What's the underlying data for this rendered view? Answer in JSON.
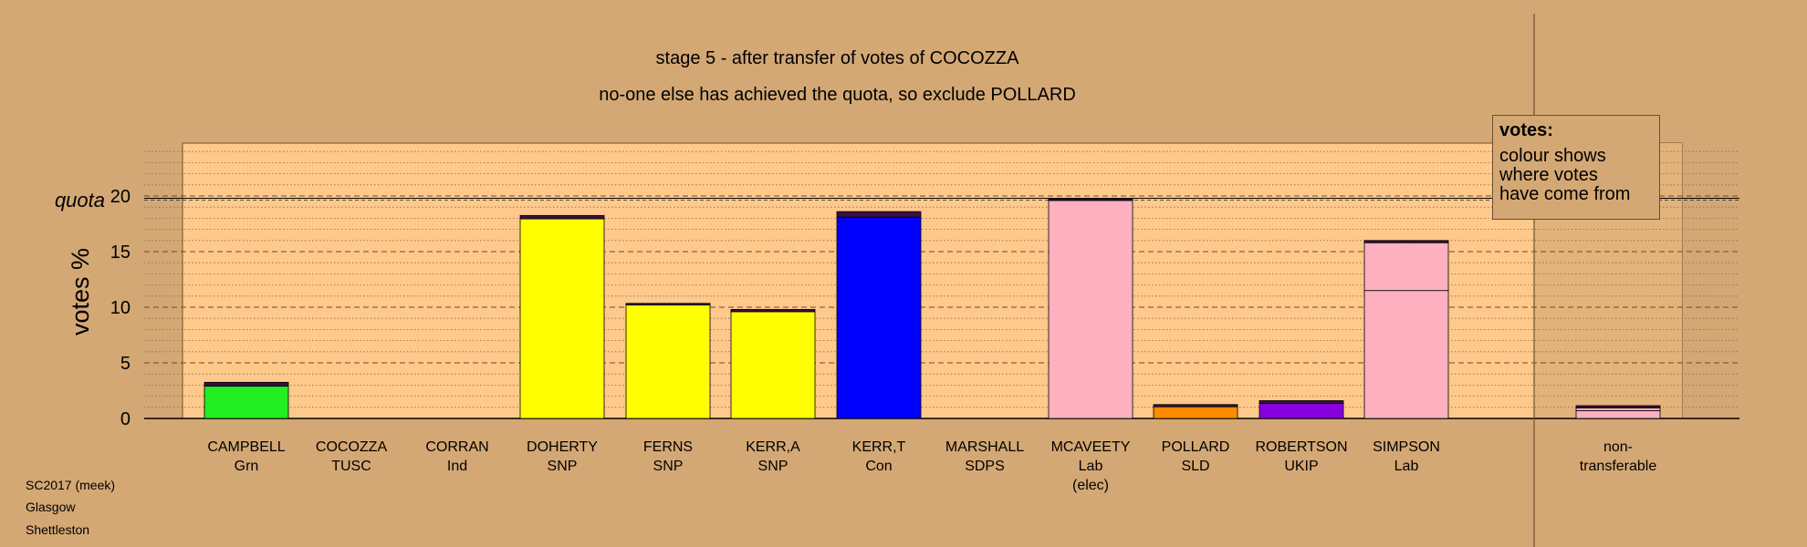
{
  "chart_data": {
    "type": "bar",
    "title": "stage 5 - after transfer of votes of COCOZZA",
    "subtitle": "no-one else has achieved the quota, so exclude POLLARD",
    "ylabel": "votes %",
    "quota_label": "quota",
    "quota_value": 19.8,
    "ylim": [
      0,
      25
    ],
    "yticks": [
      0,
      5,
      10,
      15,
      20
    ],
    "grid": true,
    "candidates": [
      {
        "name": "CAMPBELL",
        "party": "Grn",
        "extra": "",
        "color": "#22ee22",
        "segments": [
          2.9,
          0.35
        ]
      },
      {
        "name": "COCOZZA",
        "party": "TUSC",
        "extra": "",
        "color": "#dd0000",
        "segments": []
      },
      {
        "name": "CORRAN",
        "party": "Ind",
        "extra": "",
        "color": "#999999",
        "segments": []
      },
      {
        "name": "DOHERTY",
        "party": "SNP",
        "extra": "",
        "color": "#ffff00",
        "segments": [
          17.95,
          0.3
        ]
      },
      {
        "name": "FERNS",
        "party": "SNP",
        "extra": "",
        "color": "#ffff00",
        "segments": [
          10.2,
          0.15
        ]
      },
      {
        "name": "KERR,A",
        "party": "SNP",
        "extra": "",
        "color": "#ffff00",
        "segments": [
          9.6,
          0.2
        ]
      },
      {
        "name": "KERR,T",
        "party": "Con",
        "extra": "",
        "color": "#0000ff",
        "segments": [
          18.1,
          0.5
        ]
      },
      {
        "name": "MARSHALL",
        "party": "SDPS",
        "extra": "",
        "color": "#aa5500",
        "segments": []
      },
      {
        "name": "MCAVEETY",
        "party": "Lab",
        "extra": "(elec)",
        "color": "#ffb0c0",
        "segments": [
          19.6,
          0.15
        ]
      },
      {
        "name": "POLLARD",
        "party": "SLD",
        "extra": "",
        "color": "#ff8c00",
        "segments": [
          1.05,
          0.2
        ]
      },
      {
        "name": "ROBERTSON",
        "party": "UKIP",
        "extra": "",
        "color": "#8800dd",
        "segments": [
          1.35,
          0.25
        ]
      },
      {
        "name": "SIMPSON",
        "party": "Lab",
        "extra": "",
        "color": "#ffb0c0",
        "segments": [
          11.5,
          4.3,
          0.2
        ]
      },
      {
        "name": "non-",
        "party": "transferable",
        "extra": "",
        "color": "#ffb0c0",
        "segments": [
          0.7,
          0.25,
          0.2
        ]
      }
    ]
  },
  "legend": {
    "heading": "votes:",
    "line1": "colour shows",
    "line2": "where votes",
    "line3": "have come from"
  },
  "footer": {
    "line1": "SC2017 (meek)",
    "line2": "Glasgow",
    "line3": "Shettleston"
  }
}
